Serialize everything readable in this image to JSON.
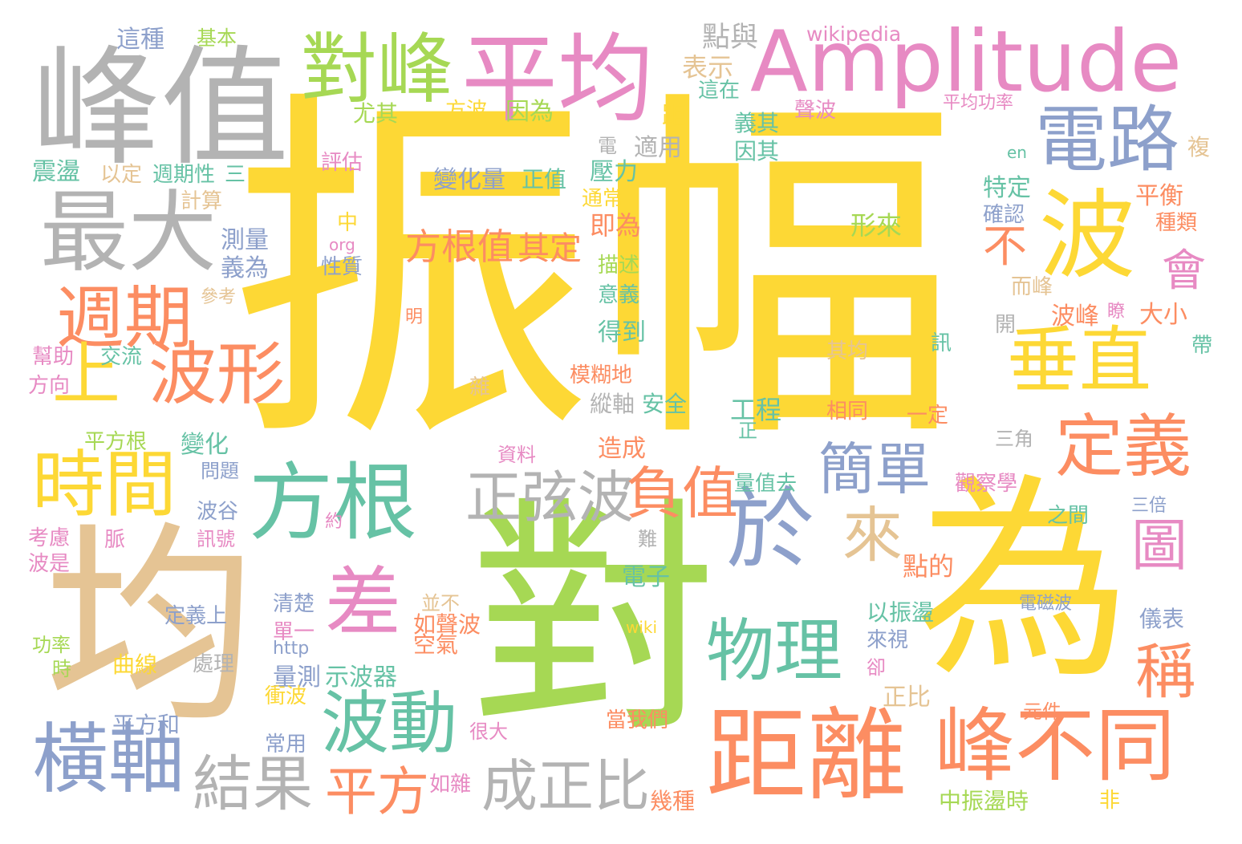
{
  "palette": {
    "yellow": "#fdd835",
    "green": "#a6d854",
    "teal": "#66c2a5",
    "orange": "#fc8d62",
    "blue": "#8da0cb",
    "pink": "#e78ac3",
    "tan": "#e5c494",
    "gray": "#b3b3b3"
  },
  "words": [
    {
      "t": "振幅",
      "c": "yellow"
    },
    {
      "t": "對",
      "c": "green"
    },
    {
      "t": "為",
      "c": "yellow"
    },
    {
      "t": "均",
      "c": "tan"
    },
    {
      "t": "峰值",
      "c": "gray"
    },
    {
      "t": "平均",
      "c": "pink"
    },
    {
      "t": "Amplitude",
      "c": "pink"
    },
    {
      "t": "對峰",
      "c": "green"
    },
    {
      "t": "電路",
      "c": "blue"
    },
    {
      "t": "波",
      "c": "yellow"
    },
    {
      "t": "最大",
      "c": "gray"
    },
    {
      "t": "週期",
      "c": "orange"
    },
    {
      "t": "上",
      "c": "yellow"
    },
    {
      "t": "波形",
      "c": "orange"
    },
    {
      "t": "垂直",
      "c": "yellow"
    },
    {
      "t": "定義",
      "c": "orange"
    },
    {
      "t": "時間",
      "c": "yellow"
    },
    {
      "t": "方根",
      "c": "teal"
    },
    {
      "t": "於",
      "c": "blue"
    },
    {
      "t": "差",
      "c": "pink"
    },
    {
      "t": "距離",
      "c": "orange"
    },
    {
      "t": "峰",
      "c": "orange"
    },
    {
      "t": "不同",
      "c": "orange"
    },
    {
      "t": "橫軸",
      "c": "blue"
    },
    {
      "t": "波動",
      "c": "teal"
    },
    {
      "t": "物理",
      "c": "teal"
    },
    {
      "t": "簡單",
      "c": "blue"
    },
    {
      "t": "正弦波",
      "c": "gray"
    },
    {
      "t": "負值",
      "c": "orange"
    },
    {
      "t": "結果",
      "c": "gray"
    },
    {
      "t": "成正比",
      "c": "gray"
    },
    {
      "t": "平方",
      "c": "orange"
    },
    {
      "t": "方根值",
      "c": "orange"
    },
    {
      "t": "其定",
      "c": "orange"
    },
    {
      "t": "不",
      "c": "orange"
    },
    {
      "t": "會",
      "c": "pink"
    },
    {
      "t": "圖",
      "c": "pink"
    },
    {
      "t": "稱",
      "c": "orange"
    },
    {
      "t": "來",
      "c": "tan"
    },
    {
      "t": "點與",
      "c": "gray"
    },
    {
      "t": "wikipedia",
      "c": "pink"
    },
    {
      "t": "這種",
      "c": "blue"
    },
    {
      "t": "基本",
      "c": "green"
    },
    {
      "t": "表示",
      "c": "tan"
    },
    {
      "t": "尤其",
      "c": "green"
    },
    {
      "t": "方波",
      "c": "yellow"
    },
    {
      "t": "因為",
      "c": "green"
    },
    {
      "t": "距",
      "c": "yellow"
    },
    {
      "t": "這在",
      "c": "teal"
    },
    {
      "t": "聲波",
      "c": "pink"
    },
    {
      "t": "平均功率",
      "c": "pink"
    },
    {
      "t": "義其",
      "c": "teal"
    },
    {
      "t": "電",
      "c": "gray"
    },
    {
      "t": "適用",
      "c": "gray"
    },
    {
      "t": "因其",
      "c": "teal"
    },
    {
      "t": "en",
      "c": "teal"
    },
    {
      "t": "複",
      "c": "tan"
    },
    {
      "t": "震盪",
      "c": "teal"
    },
    {
      "t": "以定",
      "c": "tan"
    },
    {
      "t": "週期性",
      "c": "teal"
    },
    {
      "t": "三",
      "c": "teal"
    },
    {
      "t": "評估",
      "c": "pink"
    },
    {
      "t": "變化量",
      "c": "blue"
    },
    {
      "t": "正值",
      "c": "teal"
    },
    {
      "t": "壓力",
      "c": "teal"
    },
    {
      "t": "特定",
      "c": "teal"
    },
    {
      "t": "平衡",
      "c": "orange"
    },
    {
      "t": "計算",
      "c": "tan"
    },
    {
      "t": "通常",
      "c": "yellow"
    },
    {
      "t": "形來",
      "c": "green"
    },
    {
      "t": "確認",
      "c": "blue"
    },
    {
      "t": "種類",
      "c": "orange"
    },
    {
      "t": "中",
      "c": "yellow"
    },
    {
      "t": "即為",
      "c": "orange"
    },
    {
      "t": "測量",
      "c": "blue"
    },
    {
      "t": "org",
      "c": "pink"
    },
    {
      "t": "義為",
      "c": "blue"
    },
    {
      "t": "性質",
      "c": "blue"
    },
    {
      "t": "描述",
      "c": "green"
    },
    {
      "t": "意義",
      "c": "teal"
    },
    {
      "t": "而峰",
      "c": "tan"
    },
    {
      "t": "參考",
      "c": "tan"
    },
    {
      "t": "明",
      "c": "orange"
    },
    {
      "t": "波峰",
      "c": "orange"
    },
    {
      "t": "瞭",
      "c": "pink"
    },
    {
      "t": "大小",
      "c": "orange"
    },
    {
      "t": "開",
      "c": "gray"
    },
    {
      "t": "得到",
      "c": "teal"
    },
    {
      "t": "幫助",
      "c": "pink"
    },
    {
      "t": "交流",
      "c": "teal"
    },
    {
      "t": "其均",
      "c": "tan"
    },
    {
      "t": "訊",
      "c": "teal"
    },
    {
      "t": "帶",
      "c": "teal"
    },
    {
      "t": "方向",
      "c": "pink"
    },
    {
      "t": "模糊地",
      "c": "orange"
    },
    {
      "t": "雜",
      "c": "tan"
    },
    {
      "t": "縱軸",
      "c": "gray"
    },
    {
      "t": "安全",
      "c": "teal"
    },
    {
      "t": "工程",
      "c": "teal"
    },
    {
      "t": "相同",
      "c": "orange"
    },
    {
      "t": "一定",
      "c": "orange"
    },
    {
      "t": "平方根",
      "c": "green"
    },
    {
      "t": "變化",
      "c": "teal"
    },
    {
      "t": "造成",
      "c": "orange"
    },
    {
      "t": "正",
      "c": "teal"
    },
    {
      "t": "三角",
      "c": "gray"
    },
    {
      "t": "資料",
      "c": "pink"
    },
    {
      "t": "問題",
      "c": "blue"
    },
    {
      "t": "量值去",
      "c": "teal"
    },
    {
      "t": "觀察學",
      "c": "pink"
    },
    {
      "t": "波谷",
      "c": "blue"
    },
    {
      "t": "約",
      "c": "pink"
    },
    {
      "t": "之間",
      "c": "teal"
    },
    {
      "t": "三倍",
      "c": "blue"
    },
    {
      "t": "考慮",
      "c": "pink"
    },
    {
      "t": "脈",
      "c": "pink"
    },
    {
      "t": "訊號",
      "c": "pink"
    },
    {
      "t": "難",
      "c": "gray"
    },
    {
      "t": "點的",
      "c": "orange"
    },
    {
      "t": "波是",
      "c": "pink"
    },
    {
      "t": "電子",
      "c": "teal"
    },
    {
      "t": "清楚",
      "c": "blue"
    },
    {
      "t": "並不",
      "c": "tan"
    },
    {
      "t": "如聲波",
      "c": "orange"
    },
    {
      "t": "空氣",
      "c": "orange"
    },
    {
      "t": "以振盪",
      "c": "teal"
    },
    {
      "t": "定義上",
      "c": "blue"
    },
    {
      "t": "單一",
      "c": "pink"
    },
    {
      "t": "wiki",
      "c": "yellow"
    },
    {
      "t": "電磁波",
      "c": "blue"
    },
    {
      "t": "儀表",
      "c": "blue"
    },
    {
      "t": "功率",
      "c": "green"
    },
    {
      "t": "http",
      "c": "blue"
    },
    {
      "t": "來視",
      "c": "blue"
    },
    {
      "t": "卻",
      "c": "pink"
    },
    {
      "t": "時",
      "c": "green"
    },
    {
      "t": "曲線",
      "c": "yellow"
    },
    {
      "t": "處理",
      "c": "gray"
    },
    {
      "t": "量測",
      "c": "blue"
    },
    {
      "t": "示波器",
      "c": "teal"
    },
    {
      "t": "正比",
      "c": "tan"
    },
    {
      "t": "衝波",
      "c": "yellow"
    },
    {
      "t": "平方和",
      "c": "blue"
    },
    {
      "t": "當我們",
      "c": "orange"
    },
    {
      "t": "元件",
      "c": "orange"
    },
    {
      "t": "常用",
      "c": "blue"
    },
    {
      "t": "很大",
      "c": "pink"
    },
    {
      "t": "如雜",
      "c": "pink"
    },
    {
      "t": "幾種",
      "c": "orange"
    },
    {
      "t": "中振盪時",
      "c": "green"
    },
    {
      "t": "非",
      "c": "yellow"
    }
  ]
}
